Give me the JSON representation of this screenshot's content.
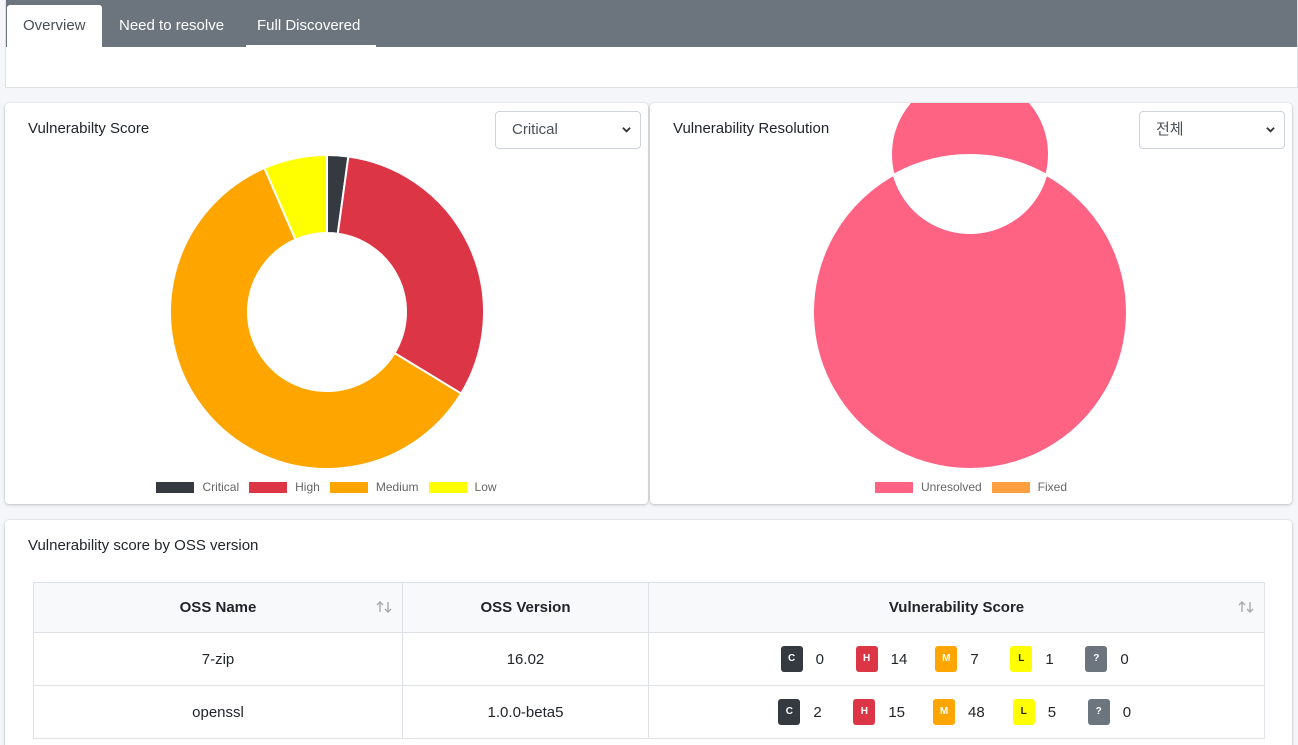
{
  "tabs": [
    {
      "label": "Overview",
      "active": true
    },
    {
      "label": "Need to resolve",
      "active": false
    },
    {
      "label": "Full Discovered",
      "active": false
    }
  ],
  "score_card": {
    "title": "Vulnerabilty Score",
    "select_value": "Critical"
  },
  "resolution_card": {
    "title": "Vulnerability Resolution",
    "select_value": "전체"
  },
  "table_card": {
    "title": "Vulnerability score by OSS version",
    "columns": [
      "OSS Name",
      "OSS Version",
      "Vulnerability Score"
    ],
    "rows": [
      {
        "name": "7-zip",
        "version": "16.02",
        "scores": {
          "C": "0",
          "H": "14",
          "M": "7",
          "L": "1",
          "U": "0"
        }
      },
      {
        "name": "openssl",
        "version": "1.0.0-beta5",
        "scores": {
          "C": "2",
          "H": "15",
          "M": "48",
          "L": "5",
          "U": "0"
        }
      }
    ]
  },
  "badges": {
    "C": "C",
    "H": "H",
    "M": "M",
    "L": "L",
    "U": "?"
  },
  "colors": {
    "critical": "#343a40",
    "high": "#dc3545",
    "medium": "#ffa500",
    "low": "#ffff00",
    "unknown": "#6c757d",
    "unresolved": "#ff6384",
    "fixed": "#ff9f40",
    "tabbar": "#6c757d"
  },
  "chart_data": [
    {
      "type": "pie",
      "title": "Vulnerabilty Score",
      "categories": [
        "Critical",
        "High",
        "Medium",
        "Low"
      ],
      "values": [
        2,
        29,
        55,
        6
      ],
      "colors": [
        "#343a40",
        "#dc3545",
        "#ffa500",
        "#ffff00"
      ],
      "legend": "bottom"
    },
    {
      "type": "pie",
      "title": "Vulnerability Resolution",
      "categories": [
        "Unresolved",
        "Fixed"
      ],
      "values": [
        92,
        0
      ],
      "colors": [
        "#ff6384",
        "#ff9f40"
      ],
      "legend": "bottom"
    }
  ]
}
